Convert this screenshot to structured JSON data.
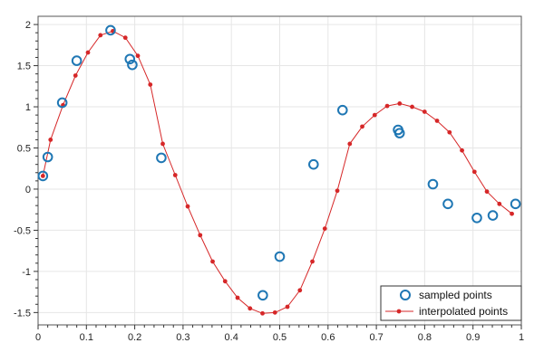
{
  "chart_data": {
    "type": "scatter",
    "title": "",
    "xlabel": "",
    "ylabel": "",
    "xlim": [
      0,
      1
    ],
    "ylim": [
      -1.65,
      2.1
    ],
    "grid": true,
    "legend_position": "bottom-right",
    "x_ticks": [
      0,
      0.1,
      0.2,
      0.3,
      0.4,
      0.5,
      0.6,
      0.7,
      0.8,
      0.9,
      1
    ],
    "x_tick_labels": [
      "0",
      "0.1",
      "0.2",
      "0.3",
      "0.4",
      "0.5",
      "0.6",
      "0.7",
      "0.8",
      "0.9",
      "1"
    ],
    "y_ticks": [
      -1.5,
      -1,
      -0.5,
      0,
      0.5,
      1,
      1.5,
      2
    ],
    "y_tick_labels": [
      "-1.5",
      "-1",
      "-0.5",
      "0",
      "0.5",
      "1",
      "1.5",
      "2"
    ],
    "series": [
      {
        "name": "sampled points",
        "style": "markers",
        "color": "#1f77b4",
        "x": [
          0.01,
          0.02,
          0.05,
          0.08,
          0.15,
          0.19,
          0.195,
          0.255,
          0.465,
          0.5,
          0.57,
          0.63,
          0.745,
          0.748,
          0.817,
          0.848,
          0.908,
          0.941,
          0.988
        ],
        "y": [
          0.16,
          0.39,
          1.05,
          1.56,
          1.93,
          1.58,
          1.51,
          0.38,
          -1.29,
          -0.82,
          0.3,
          0.96,
          0.72,
          0.68,
          0.06,
          -0.18,
          -0.35,
          -0.32,
          -0.18
        ]
      },
      {
        "name": "interpolated points",
        "style": "line-markers",
        "color": "#d62728",
        "x": [
          0.01,
          0.0258,
          0.0516,
          0.0774,
          0.1032,
          0.129,
          0.1548,
          0.1806,
          0.2064,
          0.2322,
          0.258,
          0.2838,
          0.3096,
          0.3354,
          0.3612,
          0.387,
          0.4128,
          0.4386,
          0.4644,
          0.4902,
          0.516,
          0.5418,
          0.5676,
          0.5934,
          0.6192,
          0.645,
          0.6708,
          0.6966,
          0.7224,
          0.7482,
          0.774,
          0.7998,
          0.8256,
          0.8514,
          0.8772,
          0.903,
          0.9288,
          0.9546,
          0.9804
        ],
        "y": [
          0.16,
          0.6,
          1.02,
          1.38,
          1.66,
          1.87,
          1.92,
          1.84,
          1.62,
          1.27,
          0.55,
          0.17,
          -0.21,
          -0.56,
          -0.88,
          -1.12,
          -1.32,
          -1.45,
          -1.51,
          -1.5,
          -1.43,
          -1.23,
          -0.88,
          -0.48,
          -0.02,
          0.55,
          0.76,
          0.9,
          1.01,
          1.04,
          1.0,
          0.94,
          0.83,
          0.69,
          0.47,
          0.21,
          -0.03,
          -0.18,
          -0.3
        ]
      }
    ]
  },
  "legend": {
    "sampled_label": "sampled points",
    "interpolated_label": "interpolated points"
  }
}
